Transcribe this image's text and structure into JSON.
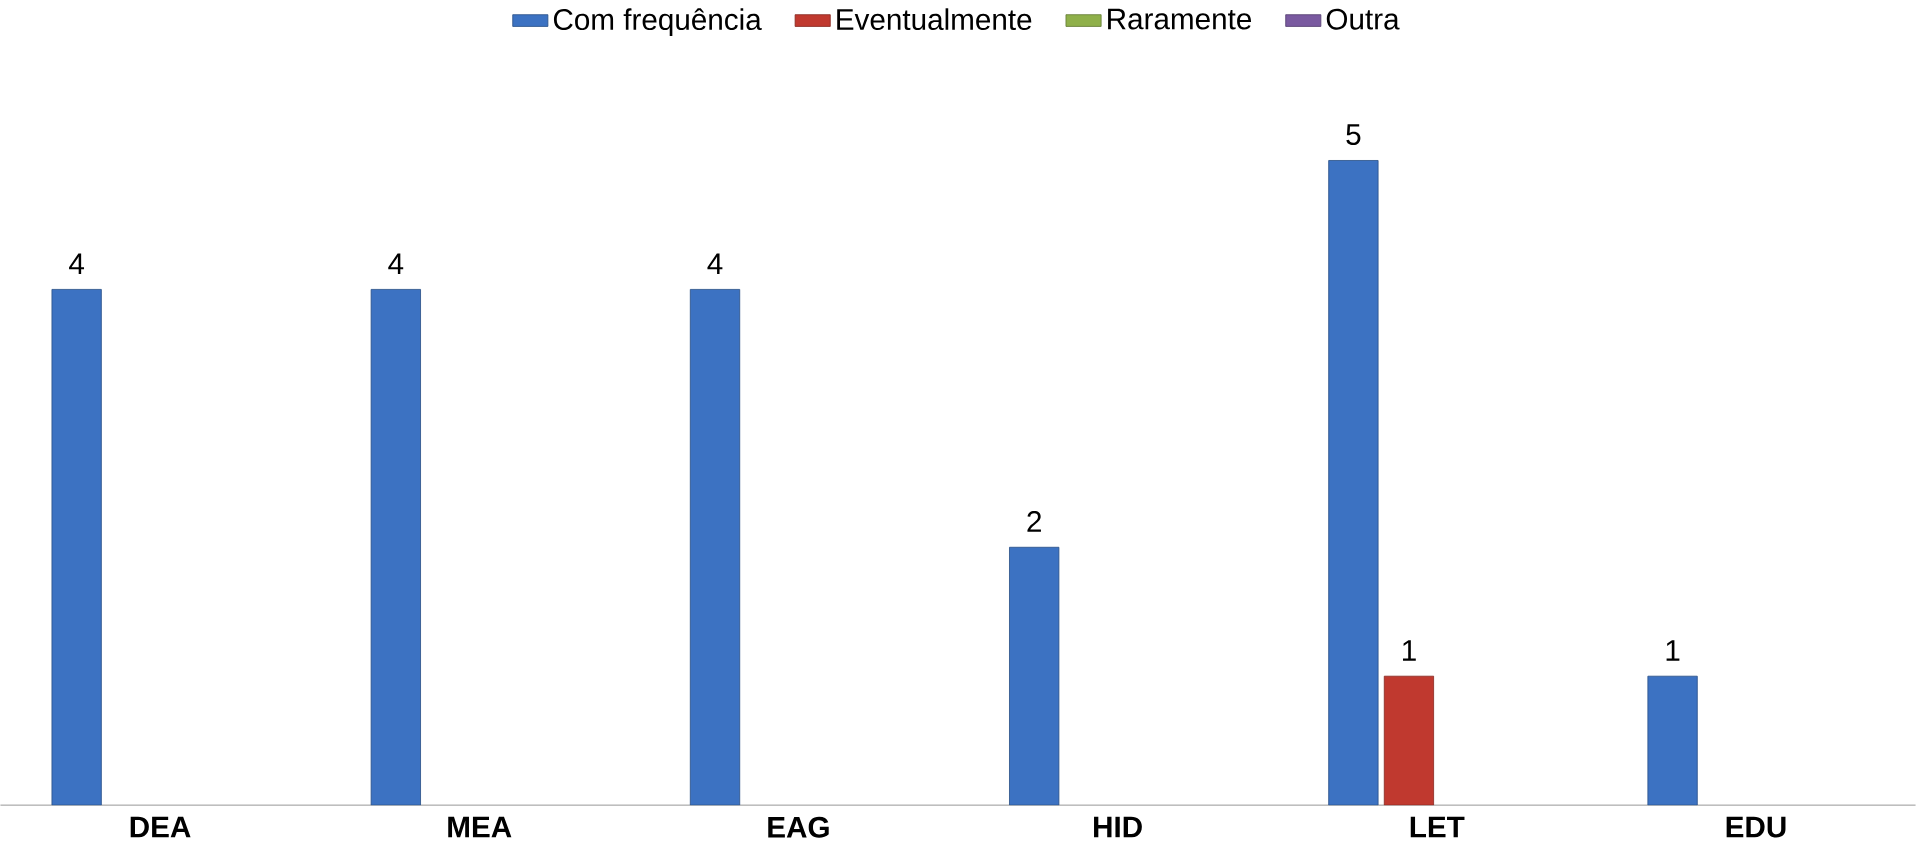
{
  "chart_data": {
    "type": "bar",
    "categories": [
      "DEA",
      "MEA",
      "EAG",
      "HID",
      "LET",
      "EDU"
    ],
    "series": [
      {
        "name": "Com frequência",
        "color": "#3c72c2",
        "values": [
          4,
          4,
          4,
          2,
          5,
          1
        ]
      },
      {
        "name": "Eventualmente",
        "color": "#c0392f",
        "values": [
          null,
          null,
          null,
          null,
          1,
          null
        ]
      },
      {
        "name": "Raramente",
        "color": "#8fb04a",
        "values": [
          null,
          null,
          null,
          null,
          null,
          null
        ]
      },
      {
        "name": "Outra",
        "color": "#7a5aa0",
        "values": [
          null,
          null,
          null,
          null,
          null,
          null
        ]
      }
    ],
    "data_labels": true,
    "legend": "top"
  }
}
